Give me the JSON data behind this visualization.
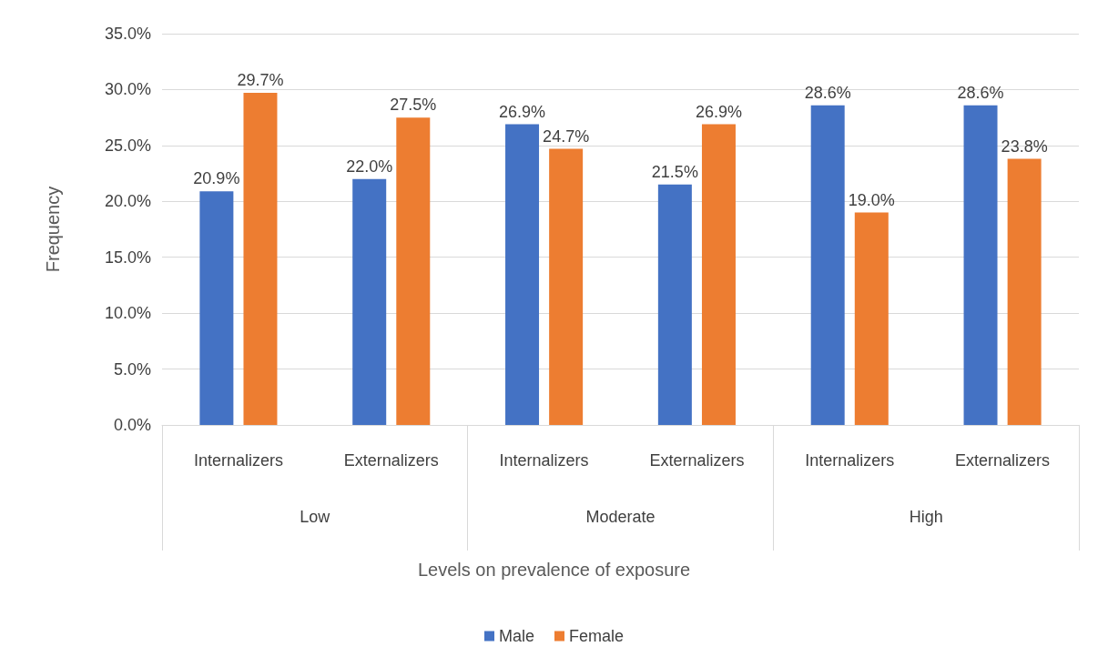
{
  "chart_data": {
    "type": "bar",
    "categories": [
      "Internalizers",
      "Externalizers",
      "Internalizers",
      "Externalizers",
      "Internalizers",
      "Externalizers"
    ],
    "annotations": [
      "Low",
      "Moderate",
      "High",
      "Levels on prevalence of exposure"
    ],
    "ylabel": "Frequency",
    "series": [
      {
        "name": "Male",
        "color": "#4472c4",
        "values": [
          20.9,
          22.0,
          26.9,
          21.5,
          28.6,
          28.6
        ],
        "value_labels": [
          "20.9%",
          "22.0%",
          "26.9%",
          "21.5%",
          "28.6%",
          "28.6%"
        ]
      },
      {
        "name": "Female",
        "color": "#ed7d31",
        "values": [
          29.7,
          27.5,
          24.7,
          26.9,
          19.0,
          23.8
        ],
        "value_labels": [
          "29.7%",
          "27.5%",
          "24.7%",
          "26.9%",
          "19.0%",
          "23.8%"
        ]
      }
    ],
    "ylim": [
      0,
      35
    ],
    "yticks": [
      {
        "value": 0,
        "label": "0.0%"
      },
      {
        "value": 5,
        "label": "5.0%"
      },
      {
        "value": 10,
        "label": "10.0%"
      },
      {
        "value": 15,
        "label": "15.0%"
      },
      {
        "value": 20,
        "label": "20.0%"
      },
      {
        "value": 25,
        "label": "25.0%"
      },
      {
        "value": 30,
        "label": "30.0%"
      },
      {
        "value": 35,
        "label": "35.0%"
      }
    ],
    "grid": "y",
    "legend": "bottom"
  }
}
